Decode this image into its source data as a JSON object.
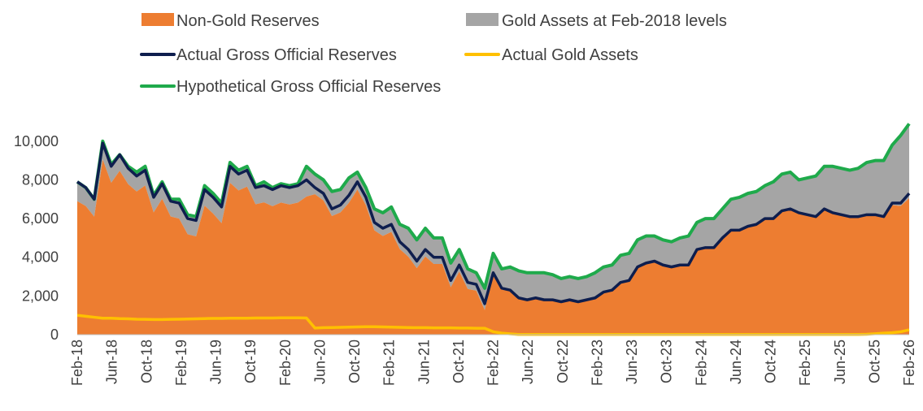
{
  "chart_data": {
    "type": "area",
    "title": "",
    "xlabel": "",
    "ylabel": "",
    "ylim": [
      0,
      11000
    ],
    "yticks": [
      0,
      2000,
      4000,
      6000,
      8000,
      10000
    ],
    "ytick_labels": [
      "0",
      "2,000",
      "4,000",
      "6,000",
      "8,000",
      "10,000"
    ],
    "x_tick_labels": [
      "Feb-18",
      "Jun-18",
      "Oct-18",
      "Feb-19",
      "Jun-19",
      "Oct-19",
      "Feb-20",
      "Jun-20",
      "Oct-20",
      "Feb-21",
      "Jun-21",
      "Oct-21",
      "Feb-22",
      "Jun-22",
      "Oct-22",
      "Feb-23",
      "Jun-23",
      "Oct-23",
      "Feb-24",
      "Jun-24",
      "Oct-24",
      "Feb-25",
      "Jun-25",
      "Oct-25",
      "Feb-26"
    ],
    "x_start": "Feb-18",
    "x_end": "Feb-26",
    "legend": {
      "placement": "top",
      "entries": [
        {
          "label": "Non-Gold Reserves",
          "kind": "area",
          "color": "#ED7D31"
        },
        {
          "label": "Gold Assets at Feb-2018 levels",
          "kind": "area",
          "color": "#A5A5A5"
        },
        {
          "label": "Actual Gross Official Reserves",
          "kind": "line",
          "color": "#0E1E4E"
        },
        {
          "label": "Actual Gold Assets",
          "kind": "line",
          "color": "#FFC000"
        },
        {
          "label": "Hypothetical Gross Official Reserves",
          "kind": "line",
          "color": "#1FAA4B"
        }
      ]
    },
    "series": [
      {
        "name": "Actual Gross Official Reserves",
        "color": "#0E1E4E",
        "values": [
          7900,
          7600,
          7000,
          9900,
          8700,
          9300,
          8600,
          8200,
          8500,
          7100,
          7800,
          6900,
          6800,
          6000,
          5900,
          7500,
          7100,
          6600,
          8700,
          8300,
          8500,
          7600,
          7700,
          7500,
          7700,
          7600,
          7700,
          8000,
          7600,
          7300,
          6500,
          6700,
          7200,
          7900,
          7100,
          5800,
          5500,
          5700,
          4800,
          4400,
          3800,
          4400,
          4000,
          4000,
          2800,
          3600,
          2700,
          2600,
          1600,
          3200,
          2400,
          2300,
          1900,
          1800,
          1900,
          1800,
          1800,
          1700,
          1800,
          1700,
          1800,
          1900,
          2200,
          2300,
          2700,
          2800,
          3500,
          3700,
          3800,
          3600,
          3500,
          3600,
          3600,
          4400,
          4500,
          4500,
          5000,
          5400,
          5400,
          5600,
          5700,
          6000,
          6000,
          6400,
          6500,
          6300,
          6200,
          6100,
          6500,
          6300,
          6200,
          6100,
          6100,
          6200,
          6200,
          6100,
          6800,
          6800,
          7300
        ]
      },
      {
        "name": "Actual Gold Assets",
        "color": "#FFC000",
        "values": [
          1000,
          950,
          900,
          850,
          850,
          830,
          820,
          800,
          790,
          780,
          780,
          790,
          800,
          810,
          820,
          830,
          840,
          840,
          850,
          850,
          850,
          860,
          860,
          860,
          870,
          870,
          870,
          860,
          340,
          360,
          370,
          380,
          390,
          400,
          410,
          410,
          400,
          390,
          380,
          370,
          360,
          360,
          350,
          350,
          350,
          340,
          340,
          330,
          330,
          150,
          80,
          40,
          10,
          10,
          10,
          10,
          10,
          10,
          10,
          10,
          10,
          10,
          10,
          10,
          10,
          10,
          10,
          10,
          10,
          10,
          10,
          10,
          10,
          10,
          10,
          10,
          10,
          10,
          10,
          10,
          10,
          10,
          10,
          10,
          10,
          10,
          10,
          10,
          10,
          10,
          10,
          10,
          10,
          20,
          50,
          80,
          100,
          150,
          250
        ]
      },
      {
        "name": "Hypothetical Gross Official Reserves",
        "color": "#1FAA4B",
        "values": [
          7900,
          7600,
          7000,
          10000,
          8800,
          9300,
          8700,
          8400,
          8700,
          7200,
          7900,
          7000,
          7000,
          6200,
          6100,
          7700,
          7300,
          6800,
          8900,
          8500,
          8700,
          7700,
          7900,
          7600,
          7800,
          7700,
          7800,
          8700,
          8300,
          8000,
          7400,
          7500,
          8100,
          8400,
          7600,
          6500,
          6300,
          6600,
          5700,
          5500,
          4900,
          5500,
          5000,
          5000,
          3700,
          4400,
          3400,
          3200,
          2400,
          4200,
          3400,
          3500,
          3300,
          3200,
          3200,
          3200,
          3100,
          2900,
          3000,
          2900,
          3000,
          3200,
          3500,
          3600,
          4100,
          4200,
          4900,
          5100,
          5100,
          4900,
          4800,
          5000,
          5100,
          5800,
          6000,
          6000,
          6500,
          7000,
          7100,
          7300,
          7400,
          7700,
          7900,
          8300,
          8400,
          8000,
          8100,
          8200,
          8700,
          8700,
          8600,
          8500,
          8600,
          8900,
          9000,
          9000,
          9800,
          10300,
          10900
        ]
      }
    ]
  }
}
